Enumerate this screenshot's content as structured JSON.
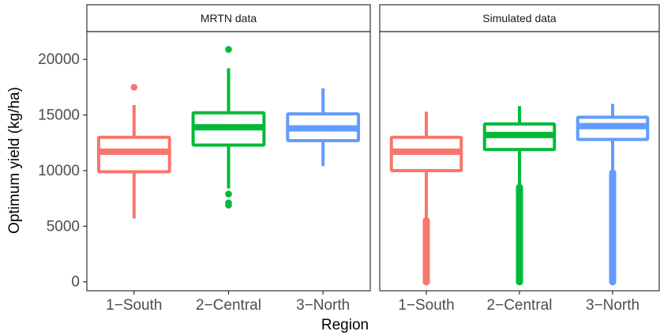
{
  "chart_data": {
    "type": "box",
    "xlabel": "Region",
    "ylabel": "Optimum yield (kg/ha)",
    "ylim": [
      -800,
      22500
    ],
    "yticks": [
      0,
      5000,
      10000,
      15000,
      20000
    ],
    "categories": [
      "1−South",
      "2−Central",
      "3−North"
    ],
    "series_colors": [
      "#F8766D",
      "#00BA38",
      "#619CFF"
    ],
    "grid": false,
    "legend": "none",
    "panels": [
      {
        "title": "MRTN data",
        "boxes": [
          {
            "category": "1−South",
            "q1": 9900,
            "median": 11700,
            "q3": 13000,
            "whisker_low": 5700,
            "whisker_high": 15900,
            "outliers": [
              17500
            ],
            "outlier_bands": []
          },
          {
            "category": "2−Central",
            "q1": 12300,
            "median": 13900,
            "q3": 15200,
            "whisker_low": 8400,
            "whisker_high": 19200,
            "outliers": [
              20900,
              7900,
              7100,
              6900
            ],
            "outlier_bands": []
          },
          {
            "category": "3−North",
            "q1": 12700,
            "median": 13800,
            "q3": 15100,
            "whisker_low": 10400,
            "whisker_high": 17400,
            "outliers": [],
            "outlier_bands": []
          }
        ]
      },
      {
        "title": "Simulated data",
        "boxes": [
          {
            "category": "1−South",
            "q1": 10000,
            "median": 11700,
            "q3": 13000,
            "whisker_low": 5600,
            "whisker_high": 15300,
            "outliers": [
              0
            ],
            "outlier_bands": [
              [
                0,
                5500
              ]
            ]
          },
          {
            "category": "2−Central",
            "q1": 11900,
            "median": 13200,
            "q3": 14200,
            "whisker_low": 8600,
            "whisker_high": 15800,
            "outliers": [
              0
            ],
            "outlier_bands": [
              [
                0,
                8500
              ]
            ]
          },
          {
            "category": "3−North",
            "q1": 12800,
            "median": 14000,
            "q3": 14800,
            "whisker_low": 9900,
            "whisker_high": 16000,
            "outliers": [
              0
            ],
            "outlier_bands": [
              [
                0,
                9800
              ]
            ]
          }
        ]
      }
    ]
  }
}
